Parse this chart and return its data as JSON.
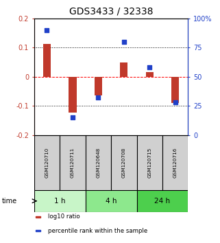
{
  "title": "GDS3433 / 32338",
  "samples": [
    "GSM120710",
    "GSM120711",
    "GSM120648",
    "GSM120708",
    "GSM120715",
    "GSM120716"
  ],
  "log10_ratio": [
    0.112,
    -0.122,
    -0.065,
    0.048,
    0.015,
    -0.09
  ],
  "percentile_rank": [
    90,
    15,
    32,
    80,
    58,
    28
  ],
  "groups": [
    {
      "label": "1 h",
      "start": 0,
      "end": 2,
      "color": "#c8f5c8"
    },
    {
      "label": "4 h",
      "start": 2,
      "end": 4,
      "color": "#8de88d"
    },
    {
      "label": "24 h",
      "start": 4,
      "end": 6,
      "color": "#4dcf4d"
    }
  ],
  "bar_color": "#c0392b",
  "dot_color": "#2040c8",
  "ylim_left": [
    -0.2,
    0.2
  ],
  "ylim_right": [
    0,
    100
  ],
  "yticks_left": [
    -0.2,
    -0.1,
    0.0,
    0.1,
    0.2
  ],
  "yticks_right": [
    0,
    25,
    50,
    75,
    100
  ],
  "ytick_labels_left": [
    "-0.2",
    "-0.1",
    "0",
    "0.1",
    "0.2"
  ],
  "ytick_labels_right": [
    "0",
    "25",
    "50",
    "75",
    "100%"
  ],
  "hlines": [
    -0.1,
    0.0,
    0.1
  ],
  "hline_styles": [
    "dotted",
    "dashed",
    "dotted"
  ],
  "hline_colors": [
    "black",
    "red",
    "black"
  ],
  "legend_items": [
    {
      "label": "log10 ratio",
      "color": "#c0392b"
    },
    {
      "label": "percentile rank within the sample",
      "color": "#2040c8"
    }
  ],
  "sample_box_color": "#d0d0d0",
  "time_label": "time",
  "background_color": "#ffffff",
  "title_fontsize": 10,
  "tick_fontsize": 7,
  "label_fontsize": 7,
  "bar_width": 0.3
}
